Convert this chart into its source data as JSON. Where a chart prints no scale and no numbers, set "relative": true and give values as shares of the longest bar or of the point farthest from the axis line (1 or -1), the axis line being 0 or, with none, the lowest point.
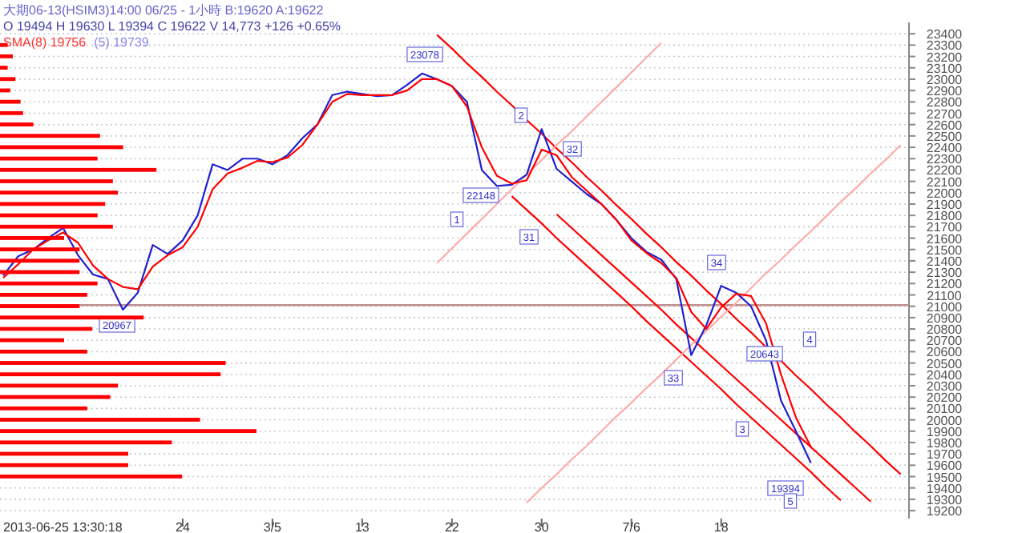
{
  "chart_data": [
    {
      "type": "line",
      "title": "大期06-13(HSIM3)14:00 06/25 - 1小時 B:19620 A:19622",
      "subtitle": "O 19494 H 19630 L 19394 C 19622 V 14,773 +126 +0.65%",
      "categories": [
        null,
        null,
        null,
        null,
        null,
        null,
        null,
        null,
        null,
        null,
        null,
        null,
        "24",
        null,
        null,
        null,
        null,
        null,
        "3/5",
        null,
        null,
        null,
        null,
        null,
        "13",
        null,
        null,
        null,
        null,
        null,
        "22",
        null,
        null,
        null,
        null,
        null,
        "30",
        null,
        null,
        null,
        null,
        null,
        "7/6",
        null,
        null,
        null,
        null,
        null,
        "18",
        null,
        null,
        null,
        null,
        null,
        null,
        null,
        null,
        null,
        null,
        null,
        null
      ],
      "ylim": [
        19130,
        23500
      ],
      "yticks": [
        19200,
        19300,
        19400,
        19500,
        19600,
        19700,
        19800,
        19900,
        20000,
        20100,
        20200,
        20300,
        20400,
        20500,
        20600,
        20700,
        20800,
        20900,
        21000,
        21100,
        21200,
        21300,
        21400,
        21500,
        21600,
        21700,
        21800,
        21900,
        22000,
        22100,
        22200,
        22300,
        22400,
        22500,
        22600,
        22700,
        22800,
        22900,
        23000,
        23100,
        23200,
        23300,
        23400
      ],
      "grid": "y",
      "ref_lines": [
        {
          "axis": "y",
          "value": 21010,
          "color": "#c09090"
        }
      ],
      "series": [
        {
          "color": "#ff0000",
          "values": [
            null,
            null,
            null,
            null,
            null,
            null,
            null,
            null,
            null,
            null,
            null,
            null,
            null,
            null,
            null,
            null,
            null,
            null,
            null,
            null,
            null,
            null,
            null,
            null,
            null,
            null,
            null,
            null,
            null,
            23390,
            23270,
            23140,
            23020,
            22890,
            22770,
            22640,
            22520,
            22390,
            22270,
            22140,
            22020,
            21890,
            21770,
            21640,
            21520,
            21390,
            21270,
            21140,
            21020,
            20890,
            20770,
            20640,
            20520,
            20390,
            20270,
            20140,
            20020,
            19890,
            19770,
            19640,
            19520
          ]
        },
        {
          "color": "#ff0000",
          "values": [
            null,
            null,
            null,
            null,
            null,
            null,
            null,
            null,
            null,
            null,
            null,
            null,
            null,
            null,
            null,
            null,
            null,
            null,
            null,
            null,
            null,
            null,
            null,
            null,
            null,
            null,
            null,
            null,
            null,
            null,
            null,
            null,
            null,
            null,
            null,
            null,
            null,
            21810,
            21690,
            21570,
            21450,
            21330,
            21210,
            21090,
            20970,
            20840,
            20720,
            20600,
            20480,
            20360,
            20240,
            20120,
            20000,
            19880,
            19760,
            19640,
            19520,
            19400,
            19280,
            null,
            null
          ]
        },
        {
          "color": "#ff0000",
          "values": [
            null,
            null,
            null,
            null,
            null,
            null,
            null,
            null,
            null,
            null,
            null,
            null,
            null,
            null,
            null,
            null,
            null,
            null,
            null,
            null,
            null,
            null,
            null,
            null,
            null,
            null,
            null,
            null,
            null,
            null,
            null,
            null,
            null,
            null,
            21970,
            21850,
            21730,
            21600,
            21480,
            21360,
            21240,
            21120,
            21000,
            20870,
            20750,
            20630,
            20510,
            20390,
            20270,
            20140,
            20020,
            19900,
            19780,
            19660,
            19540,
            19410,
            19290,
            null,
            null,
            null,
            null
          ]
        },
        {
          "color": "#ffaaaa",
          "values": [
            null,
            null,
            null,
            null,
            null,
            null,
            null,
            null,
            null,
            null,
            null,
            null,
            null,
            null,
            null,
            null,
            null,
            null,
            null,
            null,
            null,
            null,
            null,
            null,
            null,
            null,
            null,
            null,
            null,
            21380,
            21510,
            21640,
            21770,
            21900,
            22030,
            22160,
            22290,
            22420,
            22540,
            22670,
            22800,
            22930,
            23060,
            23190,
            23320,
            null,
            null,
            null,
            null,
            null,
            null,
            null,
            null,
            null,
            null,
            null,
            null,
            null,
            null,
            null,
            null
          ]
        },
        {
          "color": "#ffaaaa",
          "values": [
            null,
            null,
            null,
            null,
            null,
            null,
            null,
            null,
            null,
            null,
            null,
            null,
            null,
            null,
            null,
            null,
            null,
            null,
            null,
            null,
            null,
            null,
            null,
            null,
            null,
            null,
            null,
            null,
            null,
            null,
            null,
            null,
            null,
            null,
            null,
            19270,
            19400,
            19520,
            19650,
            19770,
            19900,
            20030,
            20150,
            20280,
            20400,
            20530,
            20660,
            20780,
            20910,
            21030,
            21160,
            21290,
            21410,
            21540,
            21660,
            21790,
            21920,
            22040,
            22170,
            22290,
            22420
          ]
        },
        {
          "color": "#2020d0",
          "values": [
            21270,
            21440,
            21500,
            21600,
            21690,
            21450,
            21280,
            21240,
            20970,
            21120,
            21540,
            21460,
            21580,
            21800,
            22250,
            22200,
            22300,
            22300,
            22250,
            22330,
            22480,
            22600,
            22860,
            22890,
            22870,
            22850,
            22860,
            22950,
            23050,
            23000,
            22940,
            22800,
            22200,
            22060,
            22070,
            22160,
            22560,
            22210,
            22100,
            21990,
            21900,
            21760,
            21600,
            21480,
            21410,
            21240,
            20570,
            20830,
            21180,
            21120,
            21000,
            20700,
            20170,
            19900,
            19620,
            null,
            null,
            null,
            null,
            null,
            null
          ]
        },
        {
          "color": "#ff0000",
          "values": [
            21250,
            21370,
            21500,
            21580,
            21650,
            21560,
            21360,
            21240,
            21170,
            21150,
            21350,
            21450,
            21520,
            21700,
            22030,
            22170,
            22220,
            22280,
            22270,
            22310,
            22420,
            22600,
            22800,
            22870,
            22860,
            22860,
            22860,
            22900,
            23000,
            23000,
            22940,
            22760,
            22400,
            22150,
            22080,
            22110,
            22380,
            22330,
            22140,
            22020,
            21900,
            21760,
            21580,
            21470,
            21380,
            21250,
            20950,
            20800,
            20990,
            21110,
            21090,
            20850,
            20400,
            20020,
            19760,
            null,
            null,
            null,
            null,
            null,
            null
          ]
        }
      ],
      "annotations": [
        "SMA(8) 19756",
        "(5) 19739",
        "23078",
        "22148",
        "20967",
        "19394",
        "20643",
        "1",
        "2",
        "3",
        "4",
        "5",
        "31",
        "32",
        "33",
        "34",
        "2013-06-25 13:30:18"
      ]
    },
    {
      "type": "bar",
      "orientation": "horizontal",
      "relative": true,
      "color": "#ff0000",
      "categories": [
        null,
        null,
        null,
        null,
        null,
        null,
        null,
        null,
        null,
        null,
        null,
        null,
        null,
        null,
        null,
        null,
        null,
        null,
        null,
        null,
        null,
        null,
        null,
        null,
        null,
        null,
        null,
        null,
        null,
        null,
        null,
        null,
        null,
        null,
        null,
        null,
        null,
        null,
        null
      ],
      "values": [
        0.03,
        0.05,
        0.03,
        0.06,
        0.04,
        0.08,
        0.09,
        0.13,
        0.39,
        0.48,
        0.38,
        0.61,
        0.44,
        0.46,
        0.41,
        0.38,
        0.44,
        0.25,
        0.31,
        0.31,
        0.31,
        0.38,
        0.34,
        0.31,
        0.56,
        0.36,
        0.25,
        0.34,
        0.88,
        0.86,
        0.46,
        0.43,
        0.34,
        0.78,
        1,
        0.67,
        0.5,
        0.5,
        0.71
      ]
    }
  ]
}
